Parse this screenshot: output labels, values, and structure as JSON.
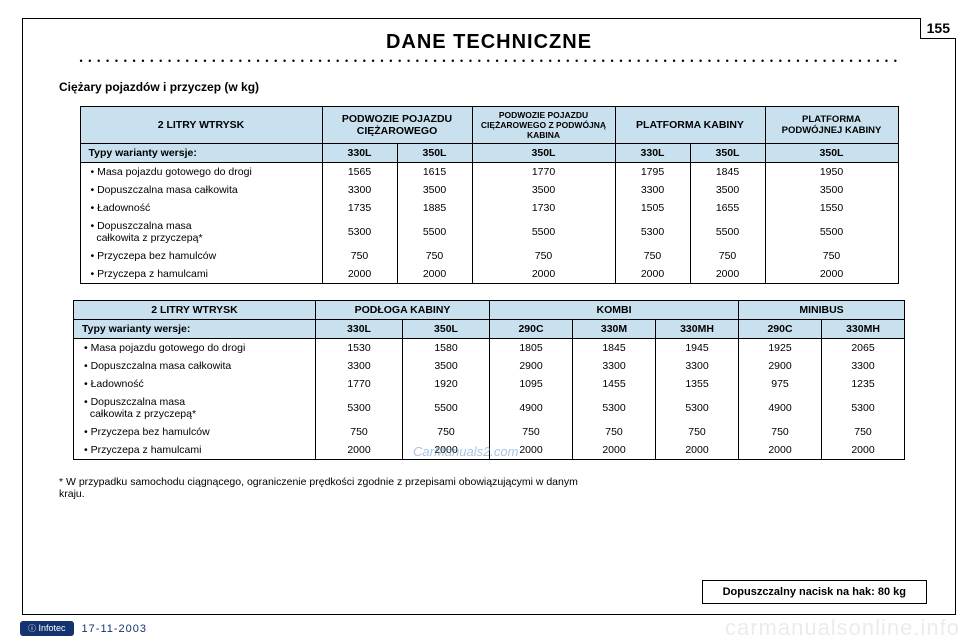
{
  "page_number": "155",
  "title": "DANE TECHNICZNE",
  "subtitle": "Ciężary pojazdów i przyczep (w kg)",
  "footnote": "* W przypadku samochodu ciągnącego, ograniczenie prędkości zgodnie z przepisami obowiązującymi w danym kraju.",
  "tow_box": "Dopuszczalny nacisk na hak: 80 kg",
  "date": "17-11-2003",
  "infotec": "Infotec",
  "t1": {
    "h1": {
      "a": "2 LITRY WTRYSK",
      "b": "PODWOZIE POJAZDU CIĘŻAROWEGO",
      "c": "PODWOZIE POJAZDU CIĘŻAROWEGO Z PODWÓJNĄ KABINA",
      "d": "PLATFORMA KABINY",
      "e": "PLATFORMA PODWÓJNEJ KABINY"
    },
    "h2": {
      "a": "Typy warianty wersje:",
      "b": "330L",
      "c": "350L",
      "d": "350L",
      "e": "330L",
      "f": "350L",
      "g": "350L"
    },
    "rows": [
      {
        "label": "• Masa pojazdu gotowego do drogi",
        "v": [
          "1565",
          "1615",
          "1770",
          "1795",
          "1845",
          "1950"
        ]
      },
      {
        "label": "• Dopuszczalna masa całkowita",
        "v": [
          "3300",
          "3500",
          "3500",
          "3300",
          "3500",
          "3500"
        ]
      },
      {
        "label": "• Ładowność",
        "v": [
          "1735",
          "1885",
          "1730",
          "1505",
          "1655",
          "1550"
        ]
      },
      {
        "label": "• Dopuszczalna masa\n  całkowita z przyczepą*",
        "v": [
          "5300",
          "5500",
          "5500",
          "5300",
          "5500",
          "5500"
        ]
      },
      {
        "label": "• Przyczepa bez hamulców",
        "v": [
          "750",
          "750",
          "750",
          "750",
          "750",
          "750"
        ]
      },
      {
        "label": "• Przyczepa z hamulcami",
        "v": [
          "2000",
          "2000",
          "2000",
          "2000",
          "2000",
          "2000"
        ]
      }
    ]
  },
  "t2": {
    "h1": {
      "a": "2 LITRY WTRYSK",
      "b": "PODŁOGA KABINY",
      "c": "KOMBI",
      "d": "MINIBUS"
    },
    "h2": {
      "a": "Typy warianty wersje:",
      "b": "330L",
      "c": "350L",
      "d": "290C",
      "e": "330M",
      "f": "330MH",
      "g": "290C",
      "h": "330MH"
    },
    "rows": [
      {
        "label": "• Masa pojazdu gotowego do drogi",
        "v": [
          "1530",
          "1580",
          "1805",
          "1845",
          "1945",
          "1925",
          "2065"
        ]
      },
      {
        "label": "• Dopuszczalna masa całkowita",
        "v": [
          "3300",
          "3500",
          "2900",
          "3300",
          "3300",
          "2900",
          "3300"
        ]
      },
      {
        "label": "• Ładowność",
        "v": [
          "1770",
          "1920",
          "1095",
          "1455",
          "1355",
          "975",
          "1235"
        ]
      },
      {
        "label": "• Dopuszczalna masa\n  całkowita z przyczepą*",
        "v": [
          "5300",
          "5500",
          "4900",
          "5300",
          "5300",
          "4900",
          "5300"
        ]
      },
      {
        "label": "• Przyczepa bez hamulców",
        "v": [
          "750",
          "750",
          "750",
          "750",
          "750",
          "750",
          "750"
        ]
      },
      {
        "label": "• Przyczepa z hamulcami",
        "v": [
          "2000",
          "2000",
          "2000",
          "2000",
          "2000",
          "2000",
          "2000"
        ]
      }
    ]
  },
  "colors": {
    "header_bg": "#c9e1ef"
  },
  "col_widths": {
    "t1": [
      62,
      62,
      130,
      62,
      62,
      120
    ],
    "t2": [
      74,
      74,
      70,
      70,
      70,
      70,
      70
    ]
  }
}
